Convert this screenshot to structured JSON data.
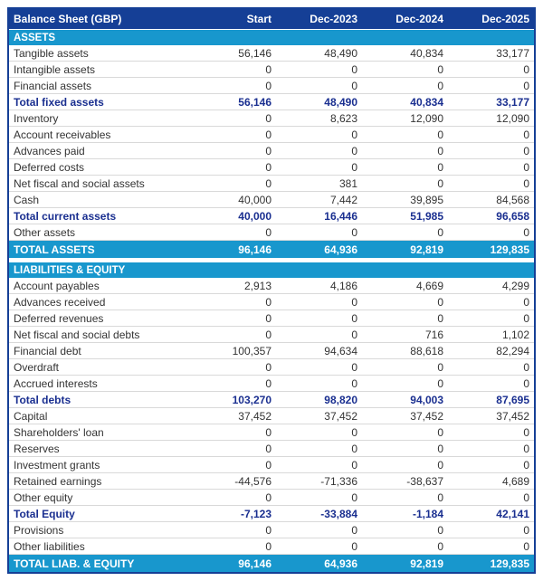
{
  "table": {
    "title": "Balance Sheet (GBP)",
    "columns": [
      "Start",
      "Dec-2023",
      "Dec-2024",
      "Dec-2025"
    ],
    "sections": [
      {
        "name": "ASSETS",
        "rows": [
          {
            "label": "Tangible assets",
            "values": [
              "56,146",
              "48,490",
              "40,834",
              "33,177"
            ],
            "bold": false
          },
          {
            "label": "Intangible assets",
            "values": [
              "0",
              "0",
              "0",
              "0"
            ],
            "bold": false
          },
          {
            "label": "Financial assets",
            "values": [
              "0",
              "0",
              "0",
              "0"
            ],
            "bold": false
          },
          {
            "label": "Total fixed assets",
            "values": [
              "56,146",
              "48,490",
              "40,834",
              "33,177"
            ],
            "bold": true
          },
          {
            "label": "Inventory",
            "values": [
              "0",
              "8,623",
              "12,090",
              "12,090"
            ],
            "bold": false
          },
          {
            "label": "Account receivables",
            "values": [
              "0",
              "0",
              "0",
              "0"
            ],
            "bold": false
          },
          {
            "label": "Advances paid",
            "values": [
              "0",
              "0",
              "0",
              "0"
            ],
            "bold": false
          },
          {
            "label": "Deferred costs",
            "values": [
              "0",
              "0",
              "0",
              "0"
            ],
            "bold": false
          },
          {
            "label": "Net fiscal and social assets",
            "values": [
              "0",
              "381",
              "0",
              "0"
            ],
            "bold": false
          },
          {
            "label": "Cash",
            "values": [
              "40,000",
              "7,442",
              "39,895",
              "84,568"
            ],
            "bold": false
          },
          {
            "label": "Total current assets",
            "values": [
              "40,000",
              "16,446",
              "51,985",
              "96,658"
            ],
            "bold": true
          },
          {
            "label": "Other assets",
            "values": [
              "0",
              "0",
              "0",
              "0"
            ],
            "bold": false
          }
        ],
        "total": {
          "label": "TOTAL ASSETS",
          "values": [
            "96,146",
            "64,936",
            "92,819",
            "129,835"
          ]
        }
      },
      {
        "name": "LIABILITIES & EQUITY",
        "rows": [
          {
            "label": "Account payables",
            "values": [
              "2,913",
              "4,186",
              "4,669",
              "4,299"
            ],
            "bold": false
          },
          {
            "label": "Advances received",
            "values": [
              "0",
              "0",
              "0",
              "0"
            ],
            "bold": false
          },
          {
            "label": "Deferred revenues",
            "values": [
              "0",
              "0",
              "0",
              "0"
            ],
            "bold": false
          },
          {
            "label": "Net fiscal and social debts",
            "values": [
              "0",
              "0",
              "716",
              "1,102"
            ],
            "bold": false
          },
          {
            "label": "Financial debt",
            "values": [
              "100,357",
              "94,634",
              "88,618",
              "82,294"
            ],
            "bold": false
          },
          {
            "label": "Overdraft",
            "values": [
              "0",
              "0",
              "0",
              "0"
            ],
            "bold": false
          },
          {
            "label": "Accrued interests",
            "values": [
              "0",
              "0",
              "0",
              "0"
            ],
            "bold": false
          },
          {
            "label": "Total debts",
            "values": [
              "103,270",
              "98,820",
              "94,003",
              "87,695"
            ],
            "bold": true
          },
          {
            "label": "Capital",
            "values": [
              "37,452",
              "37,452",
              "37,452",
              "37,452"
            ],
            "bold": false
          },
          {
            "label": "Shareholders' loan",
            "values": [
              "0",
              "0",
              "0",
              "0"
            ],
            "bold": false
          },
          {
            "label": "Reserves",
            "values": [
              "0",
              "0",
              "0",
              "0"
            ],
            "bold": false
          },
          {
            "label": "Investment grants",
            "values": [
              "0",
              "0",
              "0",
              "0"
            ],
            "bold": false
          },
          {
            "label": "Retained earnings",
            "values": [
              "-44,576",
              "-71,336",
              "-38,637",
              "4,689"
            ],
            "bold": false
          },
          {
            "label": "Other equity",
            "values": [
              "0",
              "0",
              "0",
              "0"
            ],
            "bold": false
          },
          {
            "label": "Total Equity",
            "values": [
              "-7,123",
              "-33,884",
              "-1,184",
              "42,141"
            ],
            "bold": true
          },
          {
            "label": "Provisions",
            "values": [
              "0",
              "0",
              "0",
              "0"
            ],
            "bold": false
          },
          {
            "label": "Other liabilities",
            "values": [
              "0",
              "0",
              "0",
              "0"
            ],
            "bold": false
          }
        ],
        "total": {
          "label": "TOTAL LIAB. & EQUITY",
          "values": [
            "96,146",
            "64,936",
            "92,819",
            "129,835"
          ]
        }
      }
    ]
  },
  "colors": {
    "header_navy": "#153f96",
    "section_blue": "#1897cd",
    "subtotal_text_navy": "#1a2f90",
    "body_text": "#333333",
    "row_divider": "#d9d9d9"
  }
}
